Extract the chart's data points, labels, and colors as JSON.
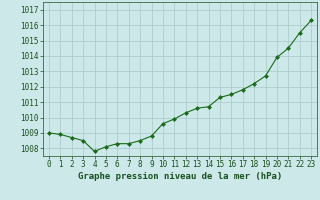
{
  "x": [
    0,
    1,
    2,
    3,
    4,
    5,
    6,
    7,
    8,
    9,
    10,
    11,
    12,
    13,
    14,
    15,
    16,
    17,
    18,
    19,
    20,
    21,
    22,
    23
  ],
  "y": [
    1009.0,
    1008.9,
    1008.7,
    1008.5,
    1007.8,
    1008.1,
    1008.3,
    1008.3,
    1008.5,
    1008.8,
    1009.6,
    1009.9,
    1010.3,
    1010.6,
    1010.7,
    1011.3,
    1011.5,
    1011.8,
    1012.2,
    1012.7,
    1013.9,
    1014.5,
    1015.5,
    1016.3
  ],
  "ylim": [
    1007.5,
    1017.5
  ],
  "yticks": [
    1008,
    1009,
    1010,
    1011,
    1012,
    1013,
    1014,
    1015,
    1016,
    1017
  ],
  "xlim": [
    -0.5,
    23.5
  ],
  "xlabel": "Graphe pression niveau de la mer (hPa)",
  "line_color": "#1a6b1a",
  "marker_color": "#1a6b1a",
  "bg_color": "#cce8e8",
  "grid_color": "#aac8c8",
  "tick_label_color": "#1a5020",
  "xlabel_color": "#1a5020",
  "tick_fontsize": 5.5,
  "xlabel_fontsize": 6.5
}
